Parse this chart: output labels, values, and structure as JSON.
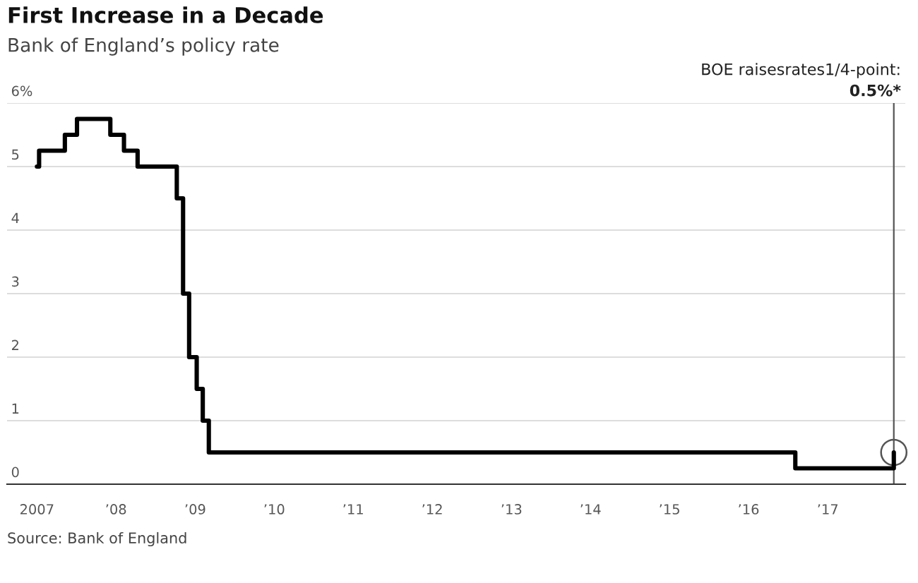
{
  "chart_data": {
    "type": "step",
    "title": "First Increase in a Decade",
    "subtitle": "Bank of England’s policy rate",
    "x": [
      "2007-01-01",
      "2007-01-11",
      "2007-05-10",
      "2007-07-05",
      "2007-12-06",
      "2008-02-07",
      "2008-04-10",
      "2008-10-08",
      "2008-11-06",
      "2008-12-04",
      "2009-01-08",
      "2009-02-05",
      "2009-03-05",
      "2016-08-04",
      "2017-11-02"
    ],
    "series": [
      {
        "color": "#000000",
        "values": [
          5.0,
          5.25,
          5.5,
          5.75,
          5.5,
          5.25,
          5.0,
          4.5,
          3.0,
          2.0,
          1.5,
          1.0,
          0.5,
          0.25,
          0.5
        ]
      }
    ],
    "xlim": [
      "2006-08-16",
      "2017-12-25"
    ],
    "xticks": [
      {
        "value": "2007-01-01",
        "label": "2007"
      },
      {
        "value": "2008-01-01",
        "label": "’08"
      },
      {
        "value": "2009-01-01",
        "label": "’09"
      },
      {
        "value": "2010-01-01",
        "label": "’10"
      },
      {
        "value": "2011-01-01",
        "label": "’11"
      },
      {
        "value": "2012-01-01",
        "label": "’12"
      },
      {
        "value": "2013-01-01",
        "label": "’13"
      },
      {
        "value": "2014-01-01",
        "label": "’14"
      },
      {
        "value": "2015-01-01",
        "label": "’15"
      },
      {
        "value": "2016-01-01",
        "label": "’16"
      },
      {
        "value": "2017-01-01",
        "label": "’17"
      }
    ],
    "ylim": [
      0,
      6
    ],
    "yticks": [
      0,
      1,
      2,
      3,
      4,
      5,
      {
        "value": 6,
        "label": "6%"
      }
    ],
    "grid": "y",
    "legend": false,
    "ref_lines": [
      {
        "axis": "x",
        "value": "2017-11-02",
        "label": "BOE raisesrates1/4-point:",
        "color": "#555555"
      }
    ],
    "annotations": [
      "0.5%*",
      "Source: Bank of England"
    ]
  }
}
